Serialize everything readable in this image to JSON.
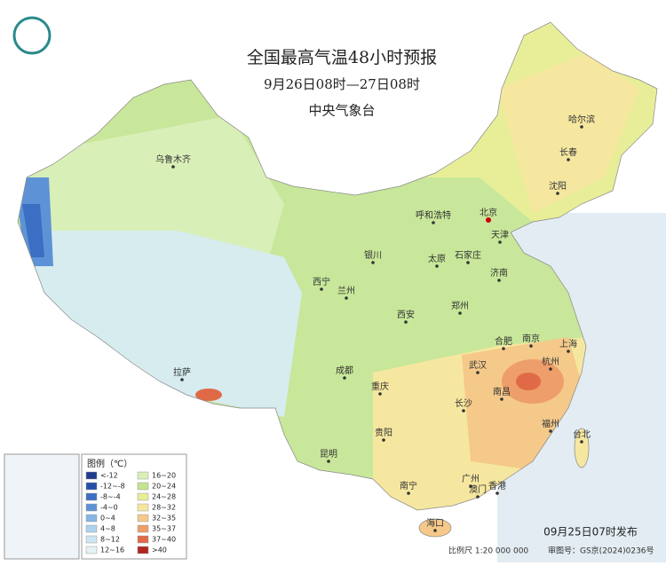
{
  "header": {
    "title": "全国最高气温48小时预报",
    "subtitle": "9月26日08时—27日08时",
    "agency": "中央气象台"
  },
  "cities": [
    "乌鲁木齐",
    "哈尔滨",
    "长春",
    "沈阳",
    "呼和浩特",
    "北京",
    "天津",
    "银川",
    "太原",
    "石家庄",
    "西宁",
    "兰州",
    "济南",
    "郑州",
    "西安",
    "合肥",
    "南京",
    "上海",
    "武汉",
    "杭州",
    "成都",
    "拉萨",
    "重庆",
    "南昌",
    "长沙",
    "贵阳",
    "福州",
    "台北",
    "昆明",
    "南宁",
    "广州",
    "澳门",
    "香港",
    "海口"
  ],
  "legend": {
    "title": "图例（℃）",
    "items": [
      {
        "label": "<-12",
        "color": "#1f3b8c"
      },
      {
        "label": "-12~-8",
        "color": "#2450a8"
      },
      {
        "label": "-8~-4",
        "color": "#3a6fc4"
      },
      {
        "label": "-4~0",
        "color": "#5d93d6"
      },
      {
        "label": "0~4",
        "color": "#86b6e3"
      },
      {
        "label": "4~8",
        "color": "#aed3ee"
      },
      {
        "label": "8~12",
        "color": "#cde6f3"
      },
      {
        "label": "12~16",
        "color": "#e4f2f3"
      },
      {
        "label": "16~20",
        "color": "#d9efb8"
      },
      {
        "label": "20~24",
        "color": "#c2e58e"
      },
      {
        "label": "24~28",
        "color": "#e8ee98"
      },
      {
        "label": "28~32",
        "color": "#f6e7a0"
      },
      {
        "label": "32~35",
        "color": "#f5c98a"
      },
      {
        "label": "35~37",
        "color": "#ee9e6a"
      },
      {
        "label": "37~40",
        "color": "#e06a48"
      },
      {
        "label": ">40",
        "color": "#b1261f"
      }
    ]
  },
  "footer": {
    "issued": "09月25日07时发布",
    "scale": "比例尺 1:20 000 000",
    "approval": "审图号：GS京(2024)0236号"
  }
}
